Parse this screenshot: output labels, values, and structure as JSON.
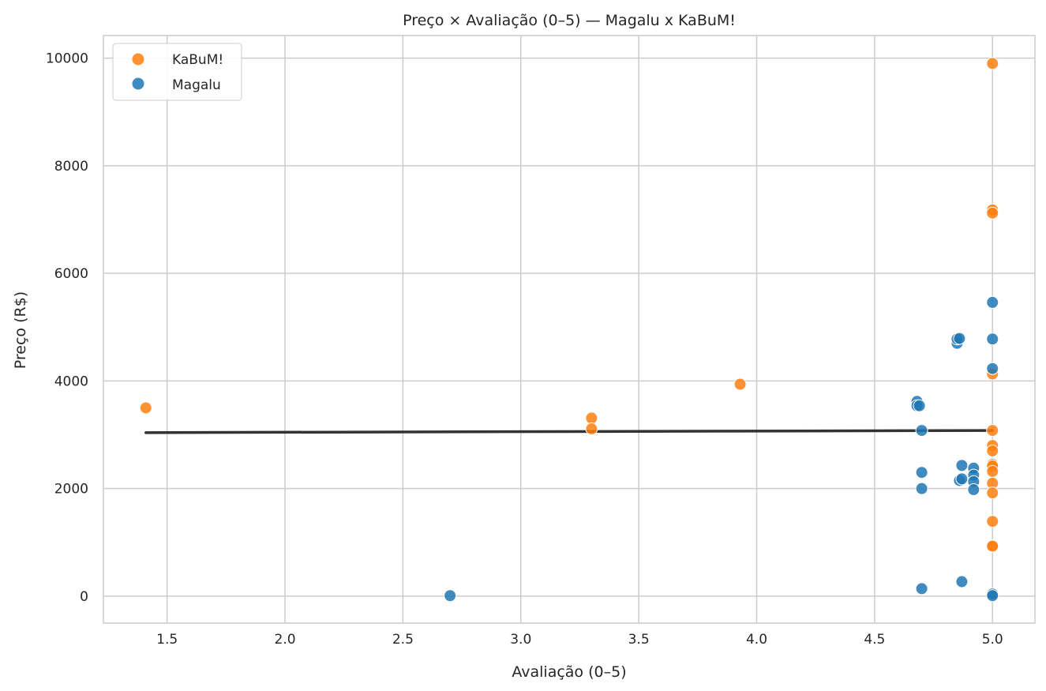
{
  "chart_data": {
    "type": "scatter",
    "title": "Preço × Avaliação (0–5) — Magalu x KaBuM!",
    "xlabel": "Avaliação (0–5)",
    "ylabel": "Preço (R$)",
    "xlim": [
      1.23,
      5.18
    ],
    "ylim": [
      -500,
      10420
    ],
    "xticks": [
      1.5,
      2.0,
      2.5,
      3.0,
      3.5,
      4.0,
      4.5,
      5.0
    ],
    "xtick_labels": [
      "1.5",
      "2.0",
      "2.5",
      "3.0",
      "3.5",
      "4.0",
      "4.5",
      "5.0"
    ],
    "yticks": [
      0,
      2000,
      4000,
      6000,
      8000,
      10000
    ],
    "ytick_labels": [
      "0",
      "2000",
      "4000",
      "6000",
      "8000",
      "10000"
    ],
    "grid": true,
    "legend_position": "top-left",
    "series": [
      {
        "name": "KaBuM!",
        "color": "#ff7f0e",
        "points": [
          [
            1.41,
            3500
          ],
          [
            3.3,
            3310
          ],
          [
            3.3,
            3110
          ],
          [
            3.93,
            3940
          ],
          [
            5.0,
            9900
          ],
          [
            5.0,
            7180
          ],
          [
            5.0,
            7120
          ],
          [
            5.0,
            4130
          ],
          [
            5.0,
            3080
          ],
          [
            5.0,
            2800
          ],
          [
            5.0,
            2700
          ],
          [
            5.0,
            2450
          ],
          [
            5.0,
            2420
          ],
          [
            5.0,
            2320
          ],
          [
            5.0,
            2100
          ],
          [
            5.0,
            1920
          ],
          [
            5.0,
            1390
          ],
          [
            5.0,
            940
          ],
          [
            5.0,
            930
          ]
        ]
      },
      {
        "name": "Magalu",
        "color": "#1f77b4",
        "points": [
          [
            2.7,
            10
          ],
          [
            4.68,
            3620
          ],
          [
            4.68,
            3540
          ],
          [
            4.69,
            3540
          ],
          [
            4.7,
            3080
          ],
          [
            4.7,
            2300
          ],
          [
            4.7,
            2000
          ],
          [
            4.7,
            140
          ],
          [
            4.85,
            4700
          ],
          [
            4.85,
            4780
          ],
          [
            4.86,
            4790
          ],
          [
            4.86,
            2150
          ],
          [
            4.87,
            2430
          ],
          [
            4.87,
            2180
          ],
          [
            4.87,
            270
          ],
          [
            4.92,
            2380
          ],
          [
            4.92,
            2250
          ],
          [
            4.92,
            2130
          ],
          [
            4.92,
            1980
          ],
          [
            5.0,
            5460
          ],
          [
            5.0,
            4780
          ],
          [
            5.0,
            4230
          ],
          [
            5.0,
            40
          ],
          [
            5.0,
            10
          ]
        ]
      }
    ],
    "trend_line": {
      "color": "#333333",
      "x": [
        1.41,
        5.0
      ],
      "y": [
        3040,
        3080
      ]
    }
  }
}
